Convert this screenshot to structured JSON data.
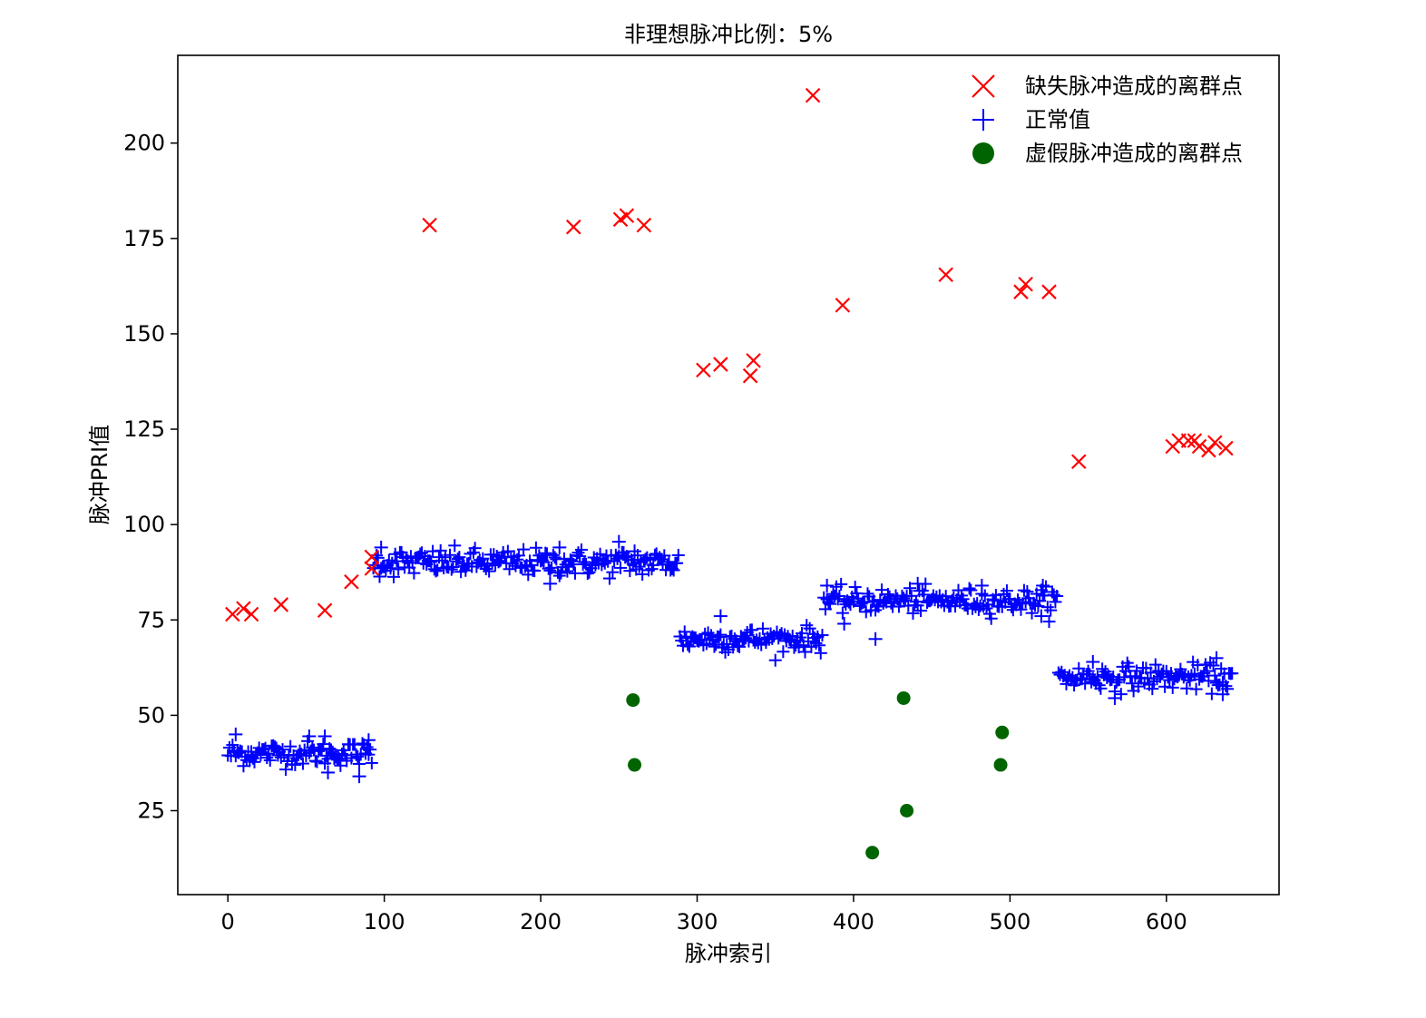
{
  "chart_data": {
    "type": "scatter",
    "title": "非理想脉冲比例：5%",
    "xlabel": "脉冲索引",
    "ylabel": "脉冲PRI值",
    "xlim": [
      -32,
      672
    ],
    "ylim": [
      3,
      223
    ],
    "xticks": [
      0,
      100,
      200,
      300,
      400,
      500,
      600
    ],
    "yticks": [
      25,
      50,
      75,
      100,
      125,
      150,
      175,
      200
    ],
    "grid": false,
    "legend_position": "top-right",
    "normal_segments": [
      {
        "x_start": 0,
        "x_end": 92,
        "level": 40,
        "spread": 1.6
      },
      {
        "x_start": 93,
        "x_end": 288,
        "level": 90,
        "spread": 1.8
      },
      {
        "x_start": 289,
        "x_end": 380,
        "level": 70,
        "spread": 1.6
      },
      {
        "x_start": 381,
        "x_end": 530,
        "level": 80,
        "spread": 1.6
      },
      {
        "x_start": 531,
        "x_end": 642,
        "level": 60,
        "spread": 1.7
      }
    ],
    "series": [
      {
        "name": "缺失脉冲造成的离群点",
        "marker": "x",
        "color": "#ff0000",
        "points": [
          [
            3,
            76.5
          ],
          [
            10,
            78
          ],
          [
            15,
            76.5
          ],
          [
            34,
            79
          ],
          [
            62,
            77.5
          ],
          [
            79,
            85
          ],
          [
            92,
            91.5
          ],
          [
            92,
            88.5
          ],
          [
            129,
            178.5
          ],
          [
            221,
            178
          ],
          [
            251,
            180
          ],
          [
            255,
            181
          ],
          [
            266,
            178.5
          ],
          [
            304,
            140.5
          ],
          [
            315,
            142
          ],
          [
            334,
            139
          ],
          [
            336,
            143
          ],
          [
            374,
            212.5
          ],
          [
            393,
            157.5
          ],
          [
            459,
            165.5
          ],
          [
            507,
            161
          ],
          [
            510,
            163
          ],
          [
            525,
            161
          ],
          [
            544,
            116.5
          ],
          [
            604,
            120.5
          ],
          [
            608,
            122
          ],
          [
            614,
            122
          ],
          [
            618,
            122
          ],
          [
            621,
            120.5
          ],
          [
            627,
            119.5
          ],
          [
            631,
            121.5
          ],
          [
            638,
            120
          ]
        ]
      },
      {
        "name": "正常值",
        "marker": "plus",
        "color": "#0000ff",
        "points": [
          [
            5,
            45
          ],
          [
            52,
            44.5
          ],
          [
            62,
            44.5
          ],
          [
            64,
            35
          ],
          [
            84,
            34
          ],
          [
            90,
            43.5
          ],
          [
            98,
            94
          ],
          [
            206,
            84.5
          ],
          [
            212,
            94
          ],
          [
            250,
            95.5
          ],
          [
            260,
            93
          ],
          [
            315,
            76
          ],
          [
            383,
            84
          ],
          [
            414,
            70
          ],
          [
            394,
            74
          ],
          [
            441,
            84.5
          ],
          [
            482,
            84
          ],
          [
            520,
            76
          ],
          [
            521,
            84
          ],
          [
            553,
            64
          ],
          [
            567,
            54.5
          ],
          [
            632,
            65
          ],
          [
            636,
            55.5
          ]
        ]
      },
      {
        "name": "虚假脉冲造成的离群点",
        "marker": "circle",
        "color": "#006400",
        "points": [
          [
            259,
            54
          ],
          [
            260,
            37
          ],
          [
            412,
            14
          ],
          [
            432,
            54.5
          ],
          [
            434,
            25
          ],
          [
            494,
            37
          ],
          [
            495,
            45.5
          ]
        ]
      }
    ]
  }
}
